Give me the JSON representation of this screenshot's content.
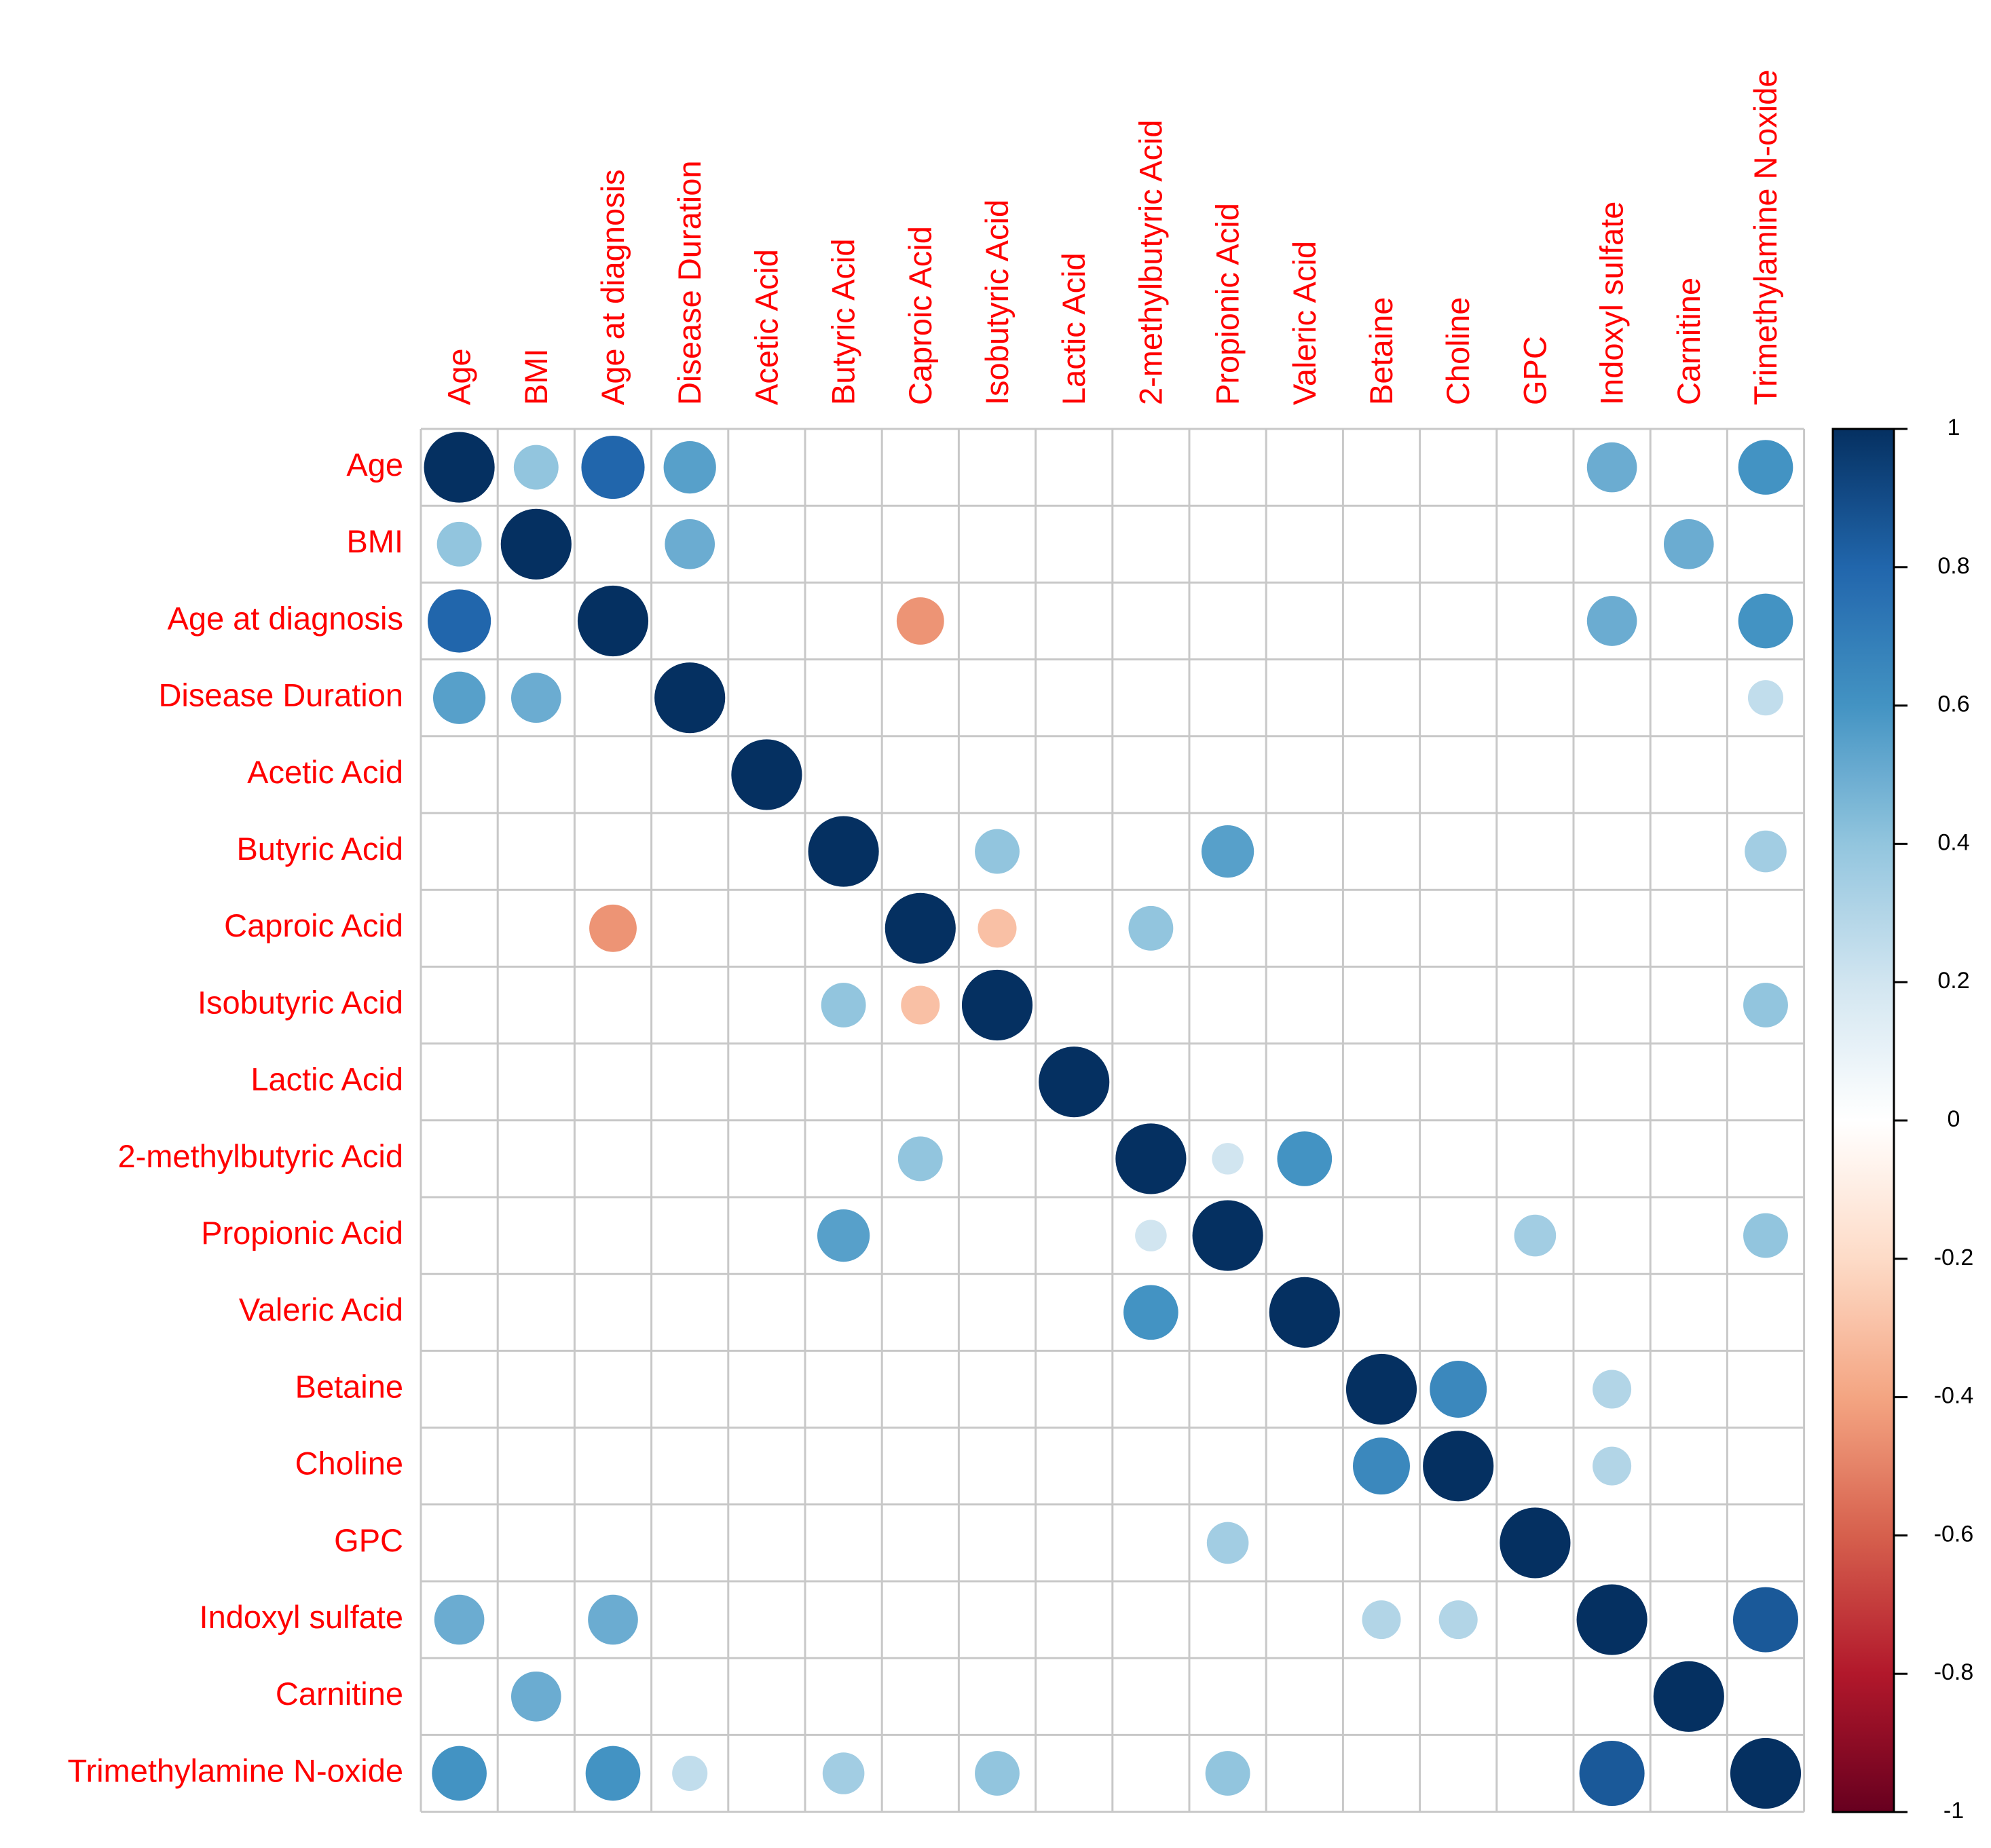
{
  "chart_data": {
    "type": "heatmap",
    "style": "correlation-circles",
    "variables": [
      "Age",
      "BMI",
      "Age at diagnosis",
      "Disease Duration",
      "Acetic Acid",
      "Butyric Acid",
      "Caproic Acid",
      "Isobutyric Acid",
      "Lactic Acid",
      "2-methylbutyric Acid",
      "Propionic Acid",
      "Valeric Acid",
      "Betaine",
      "Choline",
      "GPC",
      "Indoxyl sulfate",
      "Carnitine",
      "Trimethylamine N-oxide"
    ],
    "matrix": [
      [
        1,
        0.4,
        0.8,
        0.55,
        null,
        null,
        null,
        null,
        null,
        null,
        null,
        null,
        null,
        null,
        null,
        0.5,
        null,
        0.6
      ],
      [
        0.4,
        1,
        null,
        0.5,
        null,
        null,
        null,
        null,
        null,
        null,
        null,
        null,
        null,
        null,
        null,
        null,
        0.5,
        null
      ],
      [
        0.8,
        null,
        1,
        null,
        null,
        null,
        -0.45,
        null,
        null,
        null,
        null,
        null,
        null,
        null,
        null,
        0.5,
        null,
        0.6
      ],
      [
        0.55,
        0.5,
        null,
        1,
        null,
        null,
        null,
        null,
        null,
        null,
        null,
        null,
        null,
        null,
        null,
        null,
        null,
        0.25
      ],
      [
        null,
        null,
        null,
        null,
        1,
        null,
        null,
        null,
        null,
        null,
        null,
        null,
        null,
        null,
        null,
        null,
        null,
        null
      ],
      [
        null,
        null,
        null,
        null,
        null,
        1,
        null,
        0.4,
        null,
        null,
        0.55,
        null,
        null,
        null,
        null,
        null,
        null,
        0.35
      ],
      [
        null,
        null,
        -0.45,
        null,
        null,
        null,
        1,
        -0.3,
        null,
        0.4,
        null,
        null,
        null,
        null,
        null,
        null,
        null,
        null
      ],
      [
        null,
        null,
        null,
        null,
        null,
        0.4,
        -0.3,
        1,
        null,
        null,
        null,
        null,
        null,
        null,
        null,
        null,
        null,
        0.4
      ],
      [
        null,
        null,
        null,
        null,
        null,
        null,
        null,
        null,
        1,
        null,
        null,
        null,
        null,
        null,
        null,
        null,
        null,
        null
      ],
      [
        null,
        null,
        null,
        null,
        null,
        null,
        0.4,
        null,
        null,
        1,
        0.2,
        0.6,
        null,
        null,
        null,
        null,
        null,
        null
      ],
      [
        null,
        null,
        null,
        null,
        null,
        0.55,
        null,
        null,
        null,
        0.2,
        1,
        null,
        null,
        null,
        0.35,
        null,
        null,
        0.4
      ],
      [
        null,
        null,
        null,
        null,
        null,
        null,
        null,
        null,
        null,
        0.6,
        null,
        1,
        null,
        null,
        null,
        null,
        null,
        null
      ],
      [
        null,
        null,
        null,
        null,
        null,
        null,
        null,
        null,
        null,
        null,
        null,
        null,
        1,
        0.65,
        null,
        0.3,
        null,
        null
      ],
      [
        null,
        null,
        null,
        null,
        null,
        null,
        null,
        null,
        null,
        null,
        null,
        null,
        0.65,
        1,
        null,
        0.3,
        null,
        null
      ],
      [
        null,
        null,
        null,
        null,
        null,
        null,
        null,
        null,
        null,
        null,
        0.35,
        null,
        null,
        null,
        1,
        null,
        null,
        null
      ],
      [
        0.5,
        null,
        0.5,
        null,
        null,
        null,
        null,
        null,
        null,
        null,
        null,
        null,
        0.3,
        0.3,
        null,
        1,
        null,
        0.85
      ],
      [
        null,
        0.5,
        null,
        null,
        null,
        null,
        null,
        null,
        null,
        null,
        null,
        null,
        null,
        null,
        null,
        null,
        1,
        null
      ],
      [
        0.6,
        null,
        0.6,
        0.25,
        null,
        0.35,
        null,
        0.4,
        null,
        null,
        0.4,
        null,
        null,
        null,
        null,
        0.85,
        null,
        1
      ]
    ],
    "colorbar": {
      "ticks": [
        "1",
        "0.8",
        "0.6",
        "0.4",
        "0.2",
        "0",
        "-0.2",
        "-0.4",
        "-0.6",
        "-0.8",
        "-1"
      ],
      "range": [
        -1,
        1
      ],
      "palette": [
        "#67001f",
        "#b2182b",
        "#d6604d",
        "#f4a582",
        "#fddbc7",
        "#ffffff",
        "#d1e5f0",
        "#92c5de",
        "#4393c3",
        "#2166ac",
        "#053061"
      ]
    },
    "label_color": "#ff0000"
  }
}
